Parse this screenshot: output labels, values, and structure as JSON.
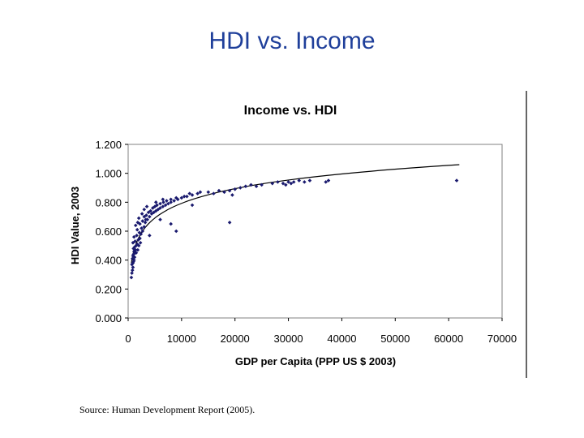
{
  "slide": {
    "title": "HDI vs. Income",
    "source": "Source:  Human Development Report (2005)."
  },
  "colors": {
    "title": "#1f3f9a",
    "points": "#1a1a6e",
    "trend": "#000000",
    "axis": "#000000"
  },
  "chart_data": {
    "type": "scatter",
    "title": "Income vs. HDI",
    "xlabel": "GDP per Capita (PPP US $ 2003)",
    "ylabel": "HDI Value, 2003",
    "xlim": [
      0,
      70000
    ],
    "ylim": [
      0,
      1.2
    ],
    "xticks": [
      0,
      10000,
      20000,
      30000,
      40000,
      50000,
      60000,
      70000
    ],
    "yticks": [
      "0.000",
      "0.200",
      "0.400",
      "0.600",
      "0.800",
      "1.000",
      "1.200"
    ],
    "grid": false,
    "legend": "none",
    "trendline": {
      "type": "logarithmic",
      "from": [
        600,
        0.38
      ],
      "to": [
        62000,
        1.06
      ]
    },
    "points": [
      [
        600,
        0.28
      ],
      [
        700,
        0.31
      ],
      [
        800,
        0.33
      ],
      [
        900,
        0.35
      ],
      [
        700,
        0.37
      ],
      [
        900,
        0.38
      ],
      [
        1000,
        0.39
      ],
      [
        1100,
        0.4
      ],
      [
        800,
        0.41
      ],
      [
        1200,
        0.42
      ],
      [
        900,
        0.43
      ],
      [
        1000,
        0.44
      ],
      [
        1300,
        0.45
      ],
      [
        1100,
        0.46
      ],
      [
        1500,
        0.45
      ],
      [
        1400,
        0.47
      ],
      [
        1800,
        0.47
      ],
      [
        1000,
        0.48
      ],
      [
        1200,
        0.49
      ],
      [
        1500,
        0.5
      ],
      [
        1700,
        0.51
      ],
      [
        2000,
        0.5
      ],
      [
        900,
        0.52
      ],
      [
        1300,
        0.53
      ],
      [
        1900,
        0.54
      ],
      [
        2200,
        0.55
      ],
      [
        1100,
        0.56
      ],
      [
        1600,
        0.57
      ],
      [
        2400,
        0.58
      ],
      [
        2100,
        0.59
      ],
      [
        2700,
        0.6
      ],
      [
        1700,
        0.61
      ],
      [
        2500,
        0.62
      ],
      [
        3000,
        0.63
      ],
      [
        1400,
        0.64
      ],
      [
        2200,
        0.65
      ],
      [
        3200,
        0.66
      ],
      [
        2700,
        0.67
      ],
      [
        3600,
        0.68
      ],
      [
        1800,
        0.66
      ],
      [
        2000,
        0.69
      ],
      [
        3000,
        0.7
      ],
      [
        4000,
        0.7
      ],
      [
        3400,
        0.71
      ],
      [
        4400,
        0.72
      ],
      [
        2600,
        0.72
      ],
      [
        3800,
        0.73
      ],
      [
        4800,
        0.73
      ],
      [
        4200,
        0.74
      ],
      [
        5200,
        0.74
      ],
      [
        3000,
        0.75
      ],
      [
        5600,
        0.75
      ],
      [
        4600,
        0.76
      ],
      [
        6000,
        0.76
      ],
      [
        5000,
        0.77
      ],
      [
        6500,
        0.77
      ],
      [
        3500,
        0.77
      ],
      [
        7000,
        0.78
      ],
      [
        5400,
        0.78
      ],
      [
        7500,
        0.79
      ],
      [
        6000,
        0.79
      ],
      [
        8000,
        0.8
      ],
      [
        6600,
        0.8
      ],
      [
        8600,
        0.81
      ],
      [
        7200,
        0.81
      ],
      [
        9300,
        0.82
      ],
      [
        8000,
        0.82
      ],
      [
        10000,
        0.83
      ],
      [
        9000,
        0.83
      ],
      [
        11000,
        0.84
      ],
      [
        10500,
        0.84
      ],
      [
        12000,
        0.85
      ],
      [
        11500,
        0.86
      ],
      [
        13000,
        0.86
      ],
      [
        6500,
        0.82
      ],
      [
        5200,
        0.8
      ],
      [
        6000,
        0.68
      ],
      [
        8000,
        0.65
      ],
      [
        9000,
        0.6
      ],
      [
        12000,
        0.78
      ],
      [
        13500,
        0.87
      ],
      [
        15000,
        0.87
      ],
      [
        16000,
        0.86
      ],
      [
        17000,
        0.88
      ],
      [
        18000,
        0.87
      ],
      [
        19000,
        0.88
      ],
      [
        20000,
        0.89
      ],
      [
        21000,
        0.9
      ],
      [
        22000,
        0.91
      ],
      [
        19500,
        0.85
      ],
      [
        23000,
        0.92
      ],
      [
        24000,
        0.91
      ],
      [
        25000,
        0.92
      ],
      [
        27000,
        0.93
      ],
      [
        28000,
        0.94
      ],
      [
        29000,
        0.93
      ],
      [
        30000,
        0.94
      ],
      [
        31000,
        0.94
      ],
      [
        32000,
        0.95
      ],
      [
        33000,
        0.94
      ],
      [
        34000,
        0.95
      ],
      [
        29500,
        0.92
      ],
      [
        30500,
        0.93
      ],
      [
        37000,
        0.94
      ],
      [
        37500,
        0.95
      ],
      [
        19000,
        0.66
      ],
      [
        61500,
        0.95
      ],
      [
        2300,
        0.52
      ],
      [
        4000,
        0.57
      ],
      [
        3300,
        0.68
      ]
    ]
  }
}
